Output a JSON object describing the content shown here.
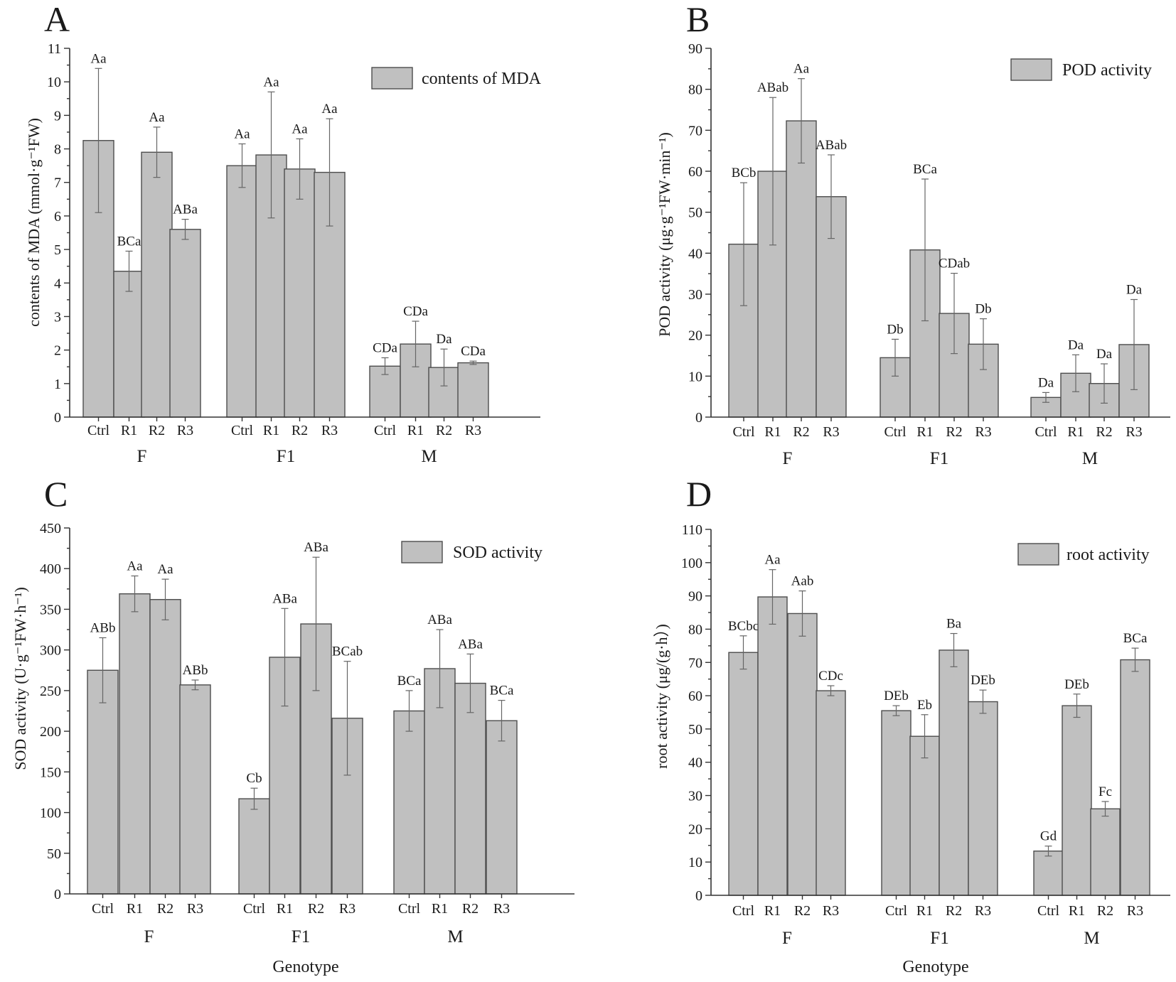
{
  "colors": {
    "bar_fill": "#c0c0c0",
    "bar_stroke": "#4d4d4d",
    "axis": "#333333",
    "error": "#666666"
  },
  "chart_data": [
    {
      "panel": "A",
      "type": "bar",
      "legend": "contents of MDA",
      "legend_position": "top-right",
      "ylabel": "contents of MDA (mmol·g⁻¹FW)",
      "xlabel": "",
      "ylim": [
        0,
        11
      ],
      "yticks": [
        0,
        1,
        2,
        3,
        4,
        5,
        6,
        7,
        8,
        9,
        10,
        11
      ],
      "groups": [
        "F",
        "F1",
        "M"
      ],
      "categories": [
        "Ctrl",
        "R1",
        "R2",
        "R3"
      ],
      "values": [
        [
          8.25,
          4.35,
          7.9,
          5.6
        ],
        [
          7.5,
          7.82,
          7.4,
          7.3
        ],
        [
          1.52,
          2.18,
          1.48,
          1.62
        ]
      ],
      "errors": [
        [
          2.15,
          0.6,
          0.75,
          0.3
        ],
        [
          0.65,
          1.88,
          0.9,
          1.6
        ],
        [
          0.25,
          0.68,
          0.55,
          0.05
        ]
      ],
      "labels": [
        [
          "Aa",
          "BCa",
          "Aa",
          "ABa"
        ],
        [
          "Aa",
          "Aa",
          "Aa",
          "Aa"
        ],
        [
          "CDa",
          "CDa",
          "Da",
          "CDa"
        ]
      ]
    },
    {
      "panel": "B",
      "type": "bar",
      "legend": "POD activity",
      "legend_position": "top-right",
      "ylabel": "POD activity (μg·g⁻¹FW·min⁻¹)",
      "xlabel": "",
      "ylim": [
        0,
        90
      ],
      "yticks": [
        0,
        10,
        20,
        30,
        40,
        50,
        60,
        70,
        80,
        90
      ],
      "groups": [
        "F",
        "F1",
        "M"
      ],
      "categories": [
        "Ctrl",
        "R1",
        "R2",
        "R3"
      ],
      "values": [
        [
          42.2,
          60,
          72.3,
          53.8
        ],
        [
          14.5,
          40.8,
          25.3,
          17.8
        ],
        [
          4.8,
          10.7,
          8.2,
          17.7
        ]
      ],
      "errors": [
        [
          15,
          18,
          10.3,
          10.2
        ],
        [
          4.5,
          17.3,
          9.8,
          6.2
        ],
        [
          1.2,
          4.5,
          4.8,
          11
        ]
      ],
      "labels": [
        [
          "BCb",
          "ABab",
          "Aa",
          "ABab"
        ],
        [
          "Db",
          "BCa",
          "CDab",
          "Db"
        ],
        [
          "Da",
          "Da",
          "Da",
          "Da"
        ]
      ]
    },
    {
      "panel": "C",
      "type": "bar",
      "legend": "SOD activity",
      "legend_position": "top-right",
      "ylabel": "SOD activity (U·g⁻¹FW·h⁻¹)",
      "xlabel": "Genotype",
      "ylim": [
        0,
        450
      ],
      "yticks": [
        0,
        50,
        100,
        150,
        200,
        250,
        300,
        350,
        400,
        450
      ],
      "groups": [
        "F",
        "F1",
        "M"
      ],
      "categories": [
        "Ctrl",
        "R1",
        "R2",
        "R3"
      ],
      "values": [
        [
          275,
          369,
          362,
          257
        ],
        [
          117,
          291,
          332,
          216
        ],
        [
          225,
          277,
          259,
          213
        ]
      ],
      "errors": [
        [
          40,
          22,
          25,
          6
        ],
        [
          13,
          60,
          82,
          70
        ],
        [
          25,
          48,
          36,
          25
        ]
      ],
      "labels": [
        [
          "ABb",
          "Aa",
          "Aa",
          "ABb"
        ],
        [
          "Cb",
          "ABa",
          "ABa",
          "BCab"
        ],
        [
          "BCa",
          "ABa",
          "ABa",
          "BCa"
        ]
      ]
    },
    {
      "panel": "D",
      "type": "bar",
      "legend": "root activity",
      "legend_position": "top-right",
      "ylabel": "root activity (μg/(g·h）)",
      "xlabel": "Genotype",
      "ylim": [
        0,
        110
      ],
      "yticks": [
        0,
        10,
        20,
        30,
        40,
        50,
        60,
        70,
        80,
        90,
        100,
        110
      ],
      "groups": [
        "F",
        "F1",
        "M"
      ],
      "categories": [
        "Ctrl",
        "R1",
        "R2",
        "R3"
      ],
      "values": [
        [
          73,
          89.7,
          84.7,
          61.5
        ],
        [
          55.5,
          47.8,
          73.7,
          58.2
        ],
        [
          13.3,
          57,
          26,
          70.8
        ]
      ],
      "errors": [
        [
          5,
          8.2,
          6.8,
          1.5
        ],
        [
          1.5,
          6.5,
          5,
          3.5
        ],
        [
          1.5,
          3.5,
          2.2,
          3.5
        ]
      ],
      "labels": [
        [
          "BCbc",
          "Aa",
          "Aab",
          "CDc"
        ],
        [
          "DEb",
          "Eb",
          "Ba",
          "DEb"
        ],
        [
          "Gd",
          "DEb",
          "Fc",
          "BCa"
        ]
      ]
    }
  ]
}
